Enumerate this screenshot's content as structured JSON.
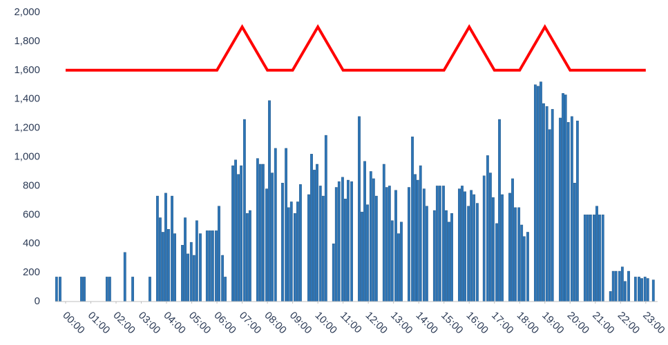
{
  "chart_data": {
    "type": "bar",
    "xlim": [
      -0.41,
      23.47
    ],
    "ylim": [
      0,
      2000
    ],
    "grid": false,
    "xticks": [
      {
        "value": 0,
        "label": "00:00"
      },
      {
        "value": 1,
        "label": "01:00"
      },
      {
        "value": 2,
        "label": "02:00"
      },
      {
        "value": 3,
        "label": "03:00"
      },
      {
        "value": 4,
        "label": "04:00"
      },
      {
        "value": 5,
        "label": "05:00"
      },
      {
        "value": 6,
        "label": "06:00"
      },
      {
        "value": 7,
        "label": "07:00"
      },
      {
        "value": 8,
        "label": "08:00"
      },
      {
        "value": 9,
        "label": "09:00"
      },
      {
        "value": 10,
        "label": "10:00"
      },
      {
        "value": 11,
        "label": "11:00"
      },
      {
        "value": 12,
        "label": "12:00"
      },
      {
        "value": 13,
        "label": "13:00"
      },
      {
        "value": 14,
        "label": "14:00"
      },
      {
        "value": 15,
        "label": "15:00"
      },
      {
        "value": 16,
        "label": "16:00"
      },
      {
        "value": 17,
        "label": "17:00"
      },
      {
        "value": 18,
        "label": "18:00"
      },
      {
        "value": 19,
        "label": "19:00"
      },
      {
        "value": 20,
        "label": "20:00"
      },
      {
        "value": 21,
        "label": "21:00"
      },
      {
        "value": 22,
        "label": "22:00"
      },
      {
        "value": 23,
        "label": "23:00"
      }
    ],
    "yticks": [
      0,
      200,
      400,
      600,
      800,
      {
        "value": 1000,
        "label": "1,000"
      },
      {
        "value": 1200,
        "label": "1,200"
      },
      {
        "value": 1400,
        "label": "1,400"
      },
      {
        "value": 1600,
        "label": "1,600"
      },
      {
        "value": 1800,
        "label": "1,800"
      },
      {
        "value": 2000,
        "label": "2,000"
      }
    ],
    "series": [
      {
        "type": "bar",
        "color": "#2e75b6",
        "x": [
          -0.36,
          -0.22,
          0.63,
          0.74,
          1.64,
          1.75,
          2.35,
          2.66,
          3.34,
          3.64,
          3.75,
          3.86,
          3.97,
          4.08,
          4.22,
          4.33,
          4.63,
          4.74,
          4.85,
          4.98,
          5.09,
          5.2,
          5.34,
          5.61,
          5.72,
          5.83,
          5.97,
          6.08,
          6.22,
          6.33,
          6.63,
          6.74,
          6.85,
          6.96,
          7.09,
          7.2,
          7.31,
          7.61,
          7.72,
          7.83,
          7.97,
          8.08,
          8.19,
          8.32,
          8.6,
          8.74,
          8.84,
          8.95,
          9.09,
          9.2,
          9.31,
          9.64,
          9.75,
          9.86,
          9.97,
          10.1,
          10.21,
          10.32,
          10.62,
          10.73,
          10.84,
          10.98,
          11.09,
          11.2,
          11.34,
          11.64,
          11.75,
          11.86,
          11.97,
          12.1,
          12.21,
          12.32,
          12.62,
          12.73,
          12.84,
          12.95,
          13.09,
          13.2,
          13.31,
          13.61,
          13.75,
          13.86,
          13.96,
          14.07,
          14.21,
          14.32,
          14.62,
          14.73,
          14.84,
          14.98,
          15.09,
          15.2,
          15.31,
          15.61,
          15.72,
          15.83,
          15.97,
          16.08,
          16.19,
          16.32,
          16.59,
          16.73,
          16.84,
          16.95,
          17.09,
          17.2,
          17.31,
          17.61,
          17.72,
          17.83,
          17.97,
          18.08,
          18.18,
          18.32,
          18.62,
          18.73,
          18.84,
          18.95,
          19.08,
          19.19,
          19.3,
          19.61,
          19.72,
          19.82,
          19.93,
          20.07,
          20.18,
          20.29,
          20.59,
          20.7,
          20.81,
          20.95,
          21.06,
          21.17,
          21.3,
          21.6,
          21.71,
          21.82,
          21.96,
          22.07,
          22.18,
          22.32,
          22.59,
          22.73,
          22.84,
          22.97,
          23.08,
          23.3
        ],
        "values": [
          170,
          170,
          170,
          170,
          170,
          170,
          340,
          170,
          170,
          730,
          580,
          480,
          750,
          500,
          730,
          470,
          390,
          580,
          330,
          410,
          320,
          560,
          470,
          490,
          490,
          490,
          490,
          660,
          320,
          170,
          940,
          980,
          880,
          940,
          1260,
          610,
          630,
          990,
          950,
          950,
          780,
          1390,
          890,
          1060,
          820,
          1060,
          650,
          690,
          610,
          690,
          810,
          740,
          1020,
          910,
          950,
          800,
          730,
          1150,
          400,
          790,
          830,
          860,
          710,
          840,
          830,
          1280,
          620,
          970,
          670,
          900,
          850,
          730,
          950,
          790,
          800,
          560,
          770,
          470,
          550,
          790,
          1140,
          880,
          840,
          940,
          780,
          660,
          630,
          800,
          800,
          800,
          630,
          550,
          610,
          780,
          800,
          760,
          660,
          770,
          740,
          680,
          870,
          1010,
          890,
          720,
          540,
          1260,
          740,
          750,
          850,
          650,
          650,
          530,
          450,
          480,
          1500,
          1490,
          1520,
          1370,
          1350,
          1190,
          1330,
          1270,
          1440,
          1430,
          1240,
          1280,
          820,
          1250,
          600,
          600,
          600,
          600,
          660,
          600,
          600,
          70,
          210,
          210,
          210,
          240,
          140,
          210,
          170,
          170,
          160,
          170,
          160,
          150
        ]
      },
      {
        "type": "line",
        "color": "#ff0000",
        "x": [
          0,
          1,
          2,
          3,
          4,
          5,
          6,
          7,
          8,
          9,
          10,
          11,
          12,
          13,
          14,
          15,
          16,
          17,
          18,
          19,
          20,
          21,
          22,
          23
        ],
        "values": [
          1600,
          1600,
          1600,
          1600,
          1600,
          1600,
          1600,
          1900,
          1600,
          1600,
          1900,
          1600,
          1600,
          1600,
          1600,
          1600,
          1900,
          1600,
          1600,
          1900,
          1600,
          1600,
          1600,
          1600
        ]
      }
    ]
  }
}
